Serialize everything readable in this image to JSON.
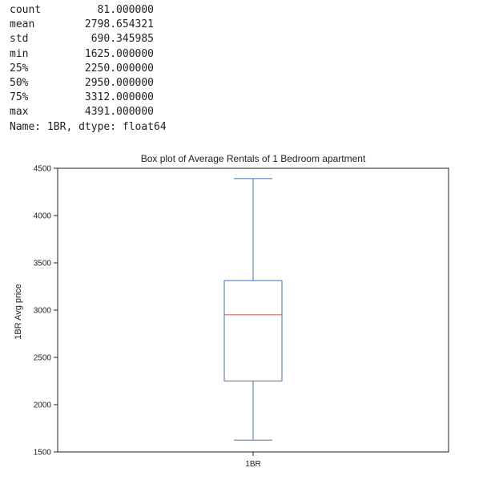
{
  "describe_output": {
    "rows": [
      {
        "key": "count",
        "value": "81.000000"
      },
      {
        "key": "mean",
        "value": "2798.654321"
      },
      {
        "key": "std",
        "value": "690.345985"
      },
      {
        "key": "min",
        "value": "1625.000000"
      },
      {
        "key": "25%",
        "value": "2250.000000"
      },
      {
        "key": "50%",
        "value": "2950.000000"
      },
      {
        "key": "75%",
        "value": "3312.000000"
      },
      {
        "key": "max",
        "value": "4391.000000"
      }
    ],
    "footer": "Name: 1BR, dtype: float64"
  },
  "chart_data": {
    "type": "box",
    "title": "Box plot of Average Rentals of 1 Bedroom apartment",
    "xlabel": "",
    "ylabel": "1BR Avg price",
    "categories": [
      "1BR"
    ],
    "boxes": [
      {
        "name": "1BR",
        "whisker_low": 1625,
        "q1": 2250,
        "median": 2950,
        "q3": 3312,
        "whisker_high": 4391
      }
    ],
    "yticks": [
      1500,
      2000,
      2500,
      3000,
      3500,
      4000,
      4500
    ],
    "ylim": [
      1500,
      4500
    ],
    "grid": false,
    "colors": {
      "box": "#4c72b0",
      "median": "#c44e52",
      "axis": "#222222"
    }
  }
}
